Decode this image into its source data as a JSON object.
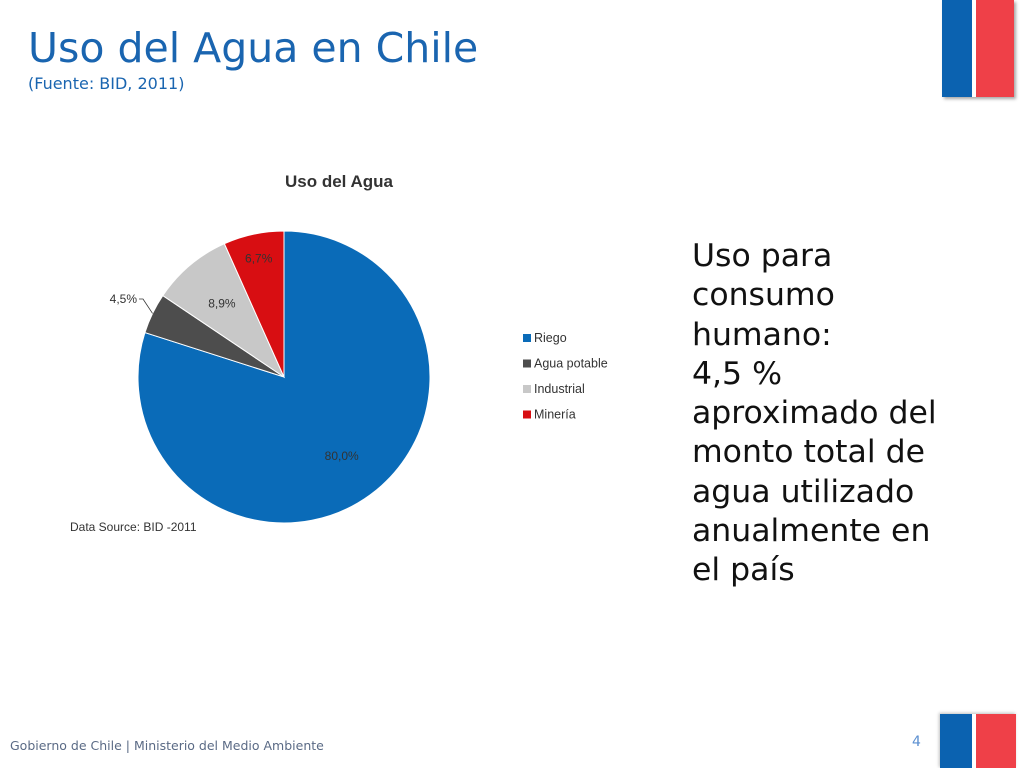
{
  "slide": {
    "title": "Uso del Agua en Chile",
    "subtitle": "(Fuente: BID, 2011)",
    "side_text_lines": [
      "Uso para",
      "consumo",
      "humano:",
      "4,5 %",
      "aproximado del",
      "monto total de",
      "agua utilizado",
      "anualmente en",
      "el país"
    ],
    "footer": "Gobierno de Chile | Ministerio del Medio Ambiente",
    "page_number": "4"
  },
  "chart_data": {
    "type": "pie",
    "title": "Uso del Agua",
    "categories": [
      "Riego",
      "Agua potable",
      "Industrial",
      "Minería"
    ],
    "values": [
      80.0,
      4.5,
      8.9,
      6.7
    ],
    "data_labels": [
      "80,0%",
      "4,5%",
      "8,9%",
      "6,7%"
    ],
    "colors": [
      "#0a6bb8",
      "#4d4d4d",
      "#c8c8c8",
      "#d80e12"
    ],
    "legend_position": "right",
    "source_note": "Data Source: BID -2011"
  }
}
